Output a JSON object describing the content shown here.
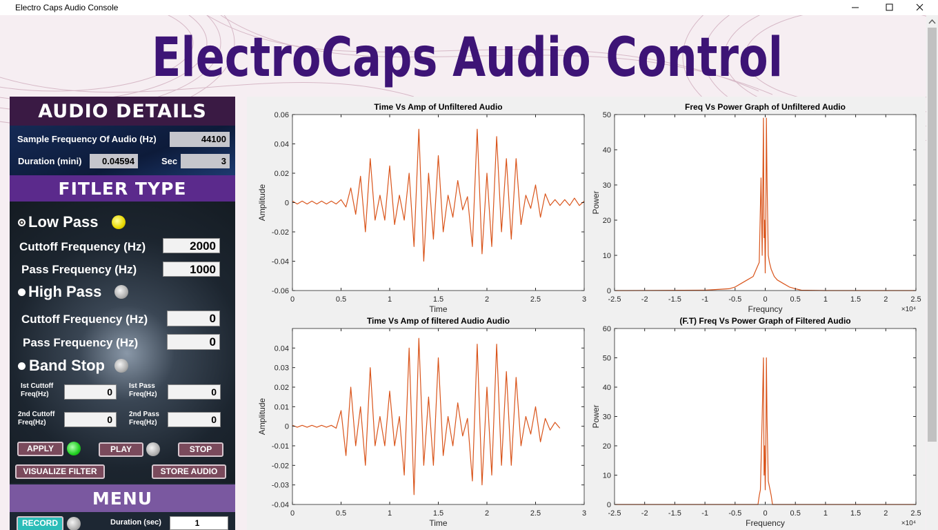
{
  "window": {
    "title": "Electro Caps Audio Console"
  },
  "header": {
    "title": "ElectroCaps Audio Control"
  },
  "audio_details": {
    "heading": "AUDIO DETAILS",
    "sample_frequency_label": "Sample Frequency Of Audio (Hz)",
    "sample_frequency": 44100,
    "duration_label": "Duration (mini)",
    "duration": 0.04594,
    "sec_label": "Sec",
    "sec": 3
  },
  "filter_type": {
    "heading": "FITLER TYPE",
    "low_pass": {
      "label": "Low Pass",
      "cutoff_label": "Cuttoff Frequency  (Hz)",
      "cutoff": 2000,
      "pass_label": "Pass Frequency  (Hz)",
      "pass": 1000
    },
    "high_pass": {
      "label": "High Pass",
      "cutoff_label": "Cuttoff Frequency  (Hz)",
      "cutoff": 0,
      "pass_label": "Pass Frequency  (Hz)",
      "pass": 0
    },
    "band_stop": {
      "label": "Band Stop",
      "cutoff1_label": "Ist Cuttoff Freq(Hz)",
      "cutoff1": 0,
      "pass1_label": "Ist Pass Freq(Hz)",
      "pass1": 0,
      "cutoff2_label": "2nd Cuttoff Freq(Hz)",
      "cutoff2": 0,
      "pass2_label": "2nd Pass Freq(Hz)",
      "pass2": 0
    },
    "buttons": {
      "apply": "APPLY",
      "play": "PLAY",
      "stop": "STOP",
      "visualize": "VISUALIZE FILTER",
      "store": "STORE AUDIO"
    }
  },
  "menu": {
    "heading": "MENU",
    "record": "RECORD",
    "duration_label": "Duration (sec)",
    "duration": 1
  },
  "chart_data": [
    {
      "type": "line",
      "title": "Time Vs Amp of Unfiltered Audio",
      "xlabel": "Time",
      "ylabel": "Amplitude",
      "color": "#d95319",
      "xlim": [
        0,
        3
      ],
      "ylim": [
        -0.06,
        0.06
      ],
      "xticks": [
        0,
        0.5,
        1,
        1.5,
        2,
        2.5,
        3
      ],
      "yticks": [
        -0.06,
        -0.04,
        -0.02,
        0,
        0.02,
        0.04,
        0.06
      ],
      "x": [
        0,
        0.05,
        0.1,
        0.15,
        0.2,
        0.25,
        0.3,
        0.35,
        0.4,
        0.45,
        0.5,
        0.55,
        0.6,
        0.65,
        0.7,
        0.75,
        0.8,
        0.85,
        0.9,
        0.95,
        1.0,
        1.05,
        1.1,
        1.15,
        1.2,
        1.25,
        1.3,
        1.35,
        1.4,
        1.45,
        1.5,
        1.55,
        1.6,
        1.65,
        1.7,
        1.75,
        1.8,
        1.85,
        1.9,
        1.95,
        2.0,
        2.05,
        2.1,
        2.15,
        2.2,
        2.25,
        2.3,
        2.35,
        2.4,
        2.45,
        2.5,
        2.55,
        2.6,
        2.65,
        2.7,
        2.75,
        2.8,
        2.85,
        2.9,
        2.95,
        3.0
      ],
      "values": [
        0.001,
        -0.001,
        0.001,
        -0.001,
        0.001,
        -0.001,
        0.001,
        -0.001,
        0.001,
        -0.001,
        0.002,
        -0.003,
        0.01,
        -0.008,
        0.018,
        -0.02,
        0.03,
        -0.012,
        0.005,
        -0.012,
        0.025,
        -0.015,
        0.005,
        -0.012,
        0.02,
        -0.03,
        0.05,
        -0.04,
        0.02,
        -0.025,
        0.032,
        -0.02,
        0.005,
        -0.01,
        0.015,
        -0.005,
        0.004,
        -0.03,
        0.05,
        -0.035,
        0.02,
        -0.03,
        0.045,
        -0.02,
        0.03,
        -0.025,
        0.03,
        -0.015,
        0.005,
        -0.004,
        0.012,
        -0.01,
        0.006,
        -0.002,
        0.002,
        -0.002,
        0.002,
        -0.002,
        0.003,
        -0.002,
        0.001
      ]
    },
    {
      "type": "line",
      "title": "Freq Vs Power Graph of Unfiltered Audio",
      "xlabel": "Frequncy",
      "ylabel": "Power",
      "color": "#d95319",
      "x_exponent": "×10⁴",
      "xlim": [
        -2.5,
        2.5
      ],
      "ylim": [
        0,
        50
      ],
      "xticks": [
        -2.5,
        -2,
        -1.5,
        -1,
        -0.5,
        0,
        0.5,
        1,
        1.5,
        2,
        2.5
      ],
      "yticks": [
        0,
        10,
        20,
        30,
        40,
        50
      ],
      "x": [
        -2.5,
        -2.3,
        -1.0,
        -0.6,
        -0.5,
        -0.4,
        -0.3,
        -0.2,
        -0.15,
        -0.1,
        -0.07,
        -0.05,
        -0.03,
        -0.02,
        -0.01,
        0,
        0.01,
        0.02,
        0.03,
        0.05,
        0.07,
        0.1,
        0.15,
        0.2,
        0.3,
        0.4,
        0.5,
        0.6,
        1.0,
        2.3,
        2.5
      ],
      "values": [
        0,
        0,
        0.1,
        0.5,
        1,
        2,
        3,
        4,
        6,
        8,
        32,
        10,
        49,
        15,
        20,
        5,
        22,
        49,
        32,
        10,
        8,
        6,
        4,
        3,
        2,
        1,
        0.5,
        0.1,
        0,
        0,
        0
      ]
    },
    {
      "type": "line",
      "title": "Time Vs Amp of filtered Audio Audio",
      "xlabel": "Time",
      "ylabel": "Amplitude",
      "color": "#d95319",
      "xlim": [
        0,
        3
      ],
      "ylim": [
        -0.04,
        0.05
      ],
      "xticks": [
        0,
        0.5,
        1,
        1.5,
        2,
        2.5,
        3
      ],
      "yticks": [
        -0.04,
        -0.03,
        -0.02,
        -0.01,
        0,
        0.01,
        0.02,
        0.03,
        0.04
      ],
      "x": [
        0,
        0.05,
        0.1,
        0.15,
        0.2,
        0.25,
        0.3,
        0.35,
        0.4,
        0.45,
        0.5,
        0.55,
        0.6,
        0.65,
        0.7,
        0.75,
        0.8,
        0.85,
        0.9,
        0.95,
        1.0,
        1.05,
        1.1,
        1.15,
        1.2,
        1.25,
        1.3,
        1.35,
        1.4,
        1.45,
        1.5,
        1.55,
        1.6,
        1.65,
        1.7,
        1.75,
        1.8,
        1.85,
        1.9,
        1.95,
        2.0,
        2.05,
        2.1,
        2.15,
        2.2,
        2.25,
        2.3,
        2.35,
        2.4,
        2.45,
        2.5,
        2.55,
        2.6,
        2.65,
        2.7,
        2.75
      ],
      "values": [
        0.0005,
        -0.0005,
        0.0005,
        -0.0005,
        0.0005,
        -0.0005,
        0.0005,
        -0.0005,
        0.0005,
        -0.001,
        0.008,
        -0.015,
        0.02,
        -0.01,
        0.01,
        -0.02,
        0.03,
        -0.01,
        0.005,
        -0.01,
        0.018,
        -0.01,
        0.005,
        -0.025,
        0.04,
        -0.035,
        0.045,
        -0.02,
        0.015,
        -0.02,
        0.035,
        -0.015,
        0.005,
        -0.01,
        0.012,
        -0.005,
        0.004,
        -0.028,
        0.042,
        -0.03,
        0.02,
        -0.025,
        0.042,
        -0.02,
        0.028,
        -0.02,
        0.025,
        -0.01,
        0.005,
        -0.004,
        0.01,
        -0.008,
        0.004,
        -0.002,
        0.002,
        -0.001
      ]
    },
    {
      "type": "line",
      "title": "(F.T) Freq Vs Power Graph of Filtered Audio",
      "xlabel": "Frequency",
      "ylabel": "Power",
      "color": "#d95319",
      "x_exponent": "×10⁴",
      "xlim": [
        -2.5,
        2.5
      ],
      "ylim": [
        0,
        60
      ],
      "xticks": [
        -2.5,
        -2,
        -1.5,
        -1,
        -0.5,
        0,
        0.5,
        1,
        1.5,
        2,
        2.5
      ],
      "yticks": [
        0,
        10,
        20,
        30,
        40,
        50,
        60
      ],
      "x": [
        -2.5,
        -0.12,
        -0.1,
        -0.08,
        -0.05,
        -0.03,
        -0.02,
        -0.01,
        0,
        0.01,
        0.02,
        0.03,
        0.05,
        0.08,
        0.1,
        0.12,
        2.5
      ],
      "values": [
        0,
        0,
        3,
        5,
        30,
        50,
        10,
        20,
        5,
        20,
        50,
        30,
        8,
        5,
        3,
        0,
        0
      ]
    }
  ]
}
